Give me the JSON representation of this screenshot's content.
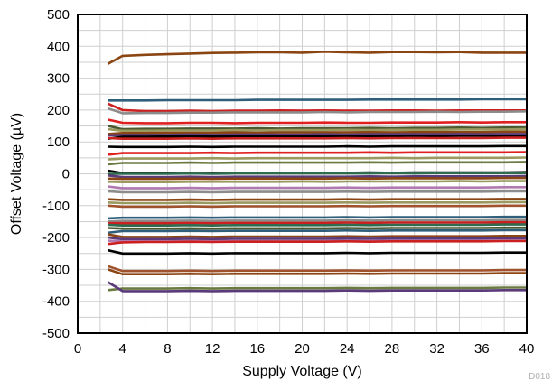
{
  "chart_data": {
    "type": "line",
    "title": "",
    "xlabel": "Supply Voltage (V)",
    "ylabel": "Offset Voltage (µV)",
    "xlim": [
      0,
      40
    ],
    "ylim": [
      -500,
      500
    ],
    "xticks": [
      0,
      4,
      8,
      12,
      16,
      20,
      24,
      28,
      32,
      36,
      40
    ],
    "yticks": [
      500,
      400,
      300,
      200,
      100,
      0,
      -100,
      -200,
      -300,
      -400,
      -500
    ],
    "grid": true,
    "legend": "none",
    "x": [
      2.7,
      4,
      6,
      8,
      10,
      12,
      14,
      16,
      18,
      20,
      22,
      24,
      26,
      28,
      30,
      32,
      34,
      36,
      38,
      40
    ],
    "footnote": "D018",
    "series": [
      {
        "color": "#8b4513",
        "values": [
          345,
          370,
          373,
          375,
          377,
          379,
          380,
          381,
          381,
          380,
          383,
          381,
          380,
          382,
          382,
          381,
          382,
          380,
          380,
          380
        ]
      },
      {
        "color": "#2f5f7a",
        "values": [
          230,
          230,
          230,
          231,
          231,
          231,
          231,
          232,
          232,
          232,
          232,
          232,
          233,
          233,
          233,
          233,
          233,
          234,
          234,
          234
        ]
      },
      {
        "color": "#cc2020",
        "values": [
          220,
          200,
          197,
          197,
          198,
          197,
          198,
          198,
          199,
          198,
          199,
          198,
          198,
          199,
          199,
          198,
          199,
          199,
          199,
          199
        ]
      },
      {
        "color": "#8c8c8c",
        "values": [
          205,
          190,
          191,
          191,
          192,
          192,
          193,
          193,
          193,
          193,
          194,
          193,
          194,
          194,
          194,
          195,
          194,
          195,
          195,
          196
        ]
      },
      {
        "color": "#e02020",
        "values": [
          170,
          160,
          159,
          159,
          160,
          160,
          159,
          160,
          160,
          160,
          161,
          160,
          160,
          161,
          161,
          161,
          162,
          161,
          162,
          162
        ]
      },
      {
        "color": "#4a5a30",
        "values": [
          150,
          140,
          141,
          141,
          142,
          142,
          142,
          143,
          142,
          143,
          143,
          143,
          144,
          143,
          144,
          144,
          145,
          144,
          145,
          145
        ]
      },
      {
        "color": "#9a9a60",
        "values": [
          140,
          135,
          135,
          136,
          136,
          136,
          137,
          136,
          137,
          137,
          137,
          138,
          137,
          138,
          138,
          138,
          139,
          139,
          139,
          140
        ]
      },
      {
        "color": "#8b4513",
        "values": [
          125,
          128,
          128,
          129,
          129,
          129,
          130,
          129,
          130,
          130,
          130,
          130,
          131,
          130,
          131,
          131,
          131,
          131,
          132,
          132
        ]
      },
      {
        "color": "#5a3a7a",
        "values": [
          120,
          122,
          122,
          122,
          123,
          122,
          123,
          123,
          123,
          123,
          124,
          123,
          124,
          124,
          124,
          124,
          125,
          124,
          125,
          125
        ]
      },
      {
        "color": "#000000",
        "values": [
          110,
          116,
          116,
          117,
          117,
          117,
          117,
          118,
          117,
          118,
          118,
          118,
          118,
          118,
          119,
          118,
          119,
          119,
          119,
          119
        ]
      },
      {
        "color": "#cc2020",
        "values": [
          112,
          110,
          110,
          110,
          111,
          110,
          111,
          111,
          111,
          111,
          111,
          112,
          111,
          112,
          112,
          112,
          112,
          112,
          113,
          113
        ]
      },
      {
        "color": "#000000",
        "values": [
          85,
          84,
          84,
          84,
          85,
          84,
          85,
          85,
          85,
          85,
          85,
          86,
          85,
          86,
          86,
          86,
          86,
          86,
          87,
          87
        ]
      },
      {
        "color": "#e02020",
        "values": [
          60,
          65,
          65,
          65,
          65,
          66,
          65,
          66,
          66,
          66,
          66,
          66,
          67,
          66,
          67,
          67,
          67,
          67,
          67,
          68
        ]
      },
      {
        "color": "#9a9a60",
        "values": [
          45,
          48,
          48,
          48,
          48,
          49,
          48,
          49,
          49,
          49,
          49,
          49,
          49,
          50,
          49,
          50,
          50,
          50,
          50,
          51
        ]
      },
      {
        "color": "#6a7a40",
        "values": [
          30,
          34,
          34,
          34,
          35,
          34,
          35,
          35,
          35,
          35,
          35,
          35,
          36,
          35,
          36,
          36,
          36,
          36,
          36,
          37
        ]
      },
      {
        "color": "#000000",
        "values": [
          10,
          2,
          2,
          2,
          3,
          2,
          3,
          3,
          3,
          3,
          3,
          3,
          4,
          3,
          4,
          4,
          4,
          4,
          4,
          5
        ]
      },
      {
        "color": "#2e6b4f",
        "values": [
          0,
          0,
          0,
          0,
          1,
          0,
          1,
          1,
          1,
          1,
          1,
          1,
          1,
          2,
          1,
          2,
          2,
          2,
          2,
          2
        ]
      },
      {
        "color": "#5a3a7a",
        "values": [
          -5,
          -10,
          -10,
          -10,
          -9,
          -10,
          -9,
          -9,
          -9,
          -9,
          -9,
          -9,
          -8,
          -9,
          -8,
          -8,
          -8,
          -8,
          -8,
          -7
        ]
      },
      {
        "color": "#8b4513",
        "values": [
          -15,
          -16,
          -16,
          -16,
          -15,
          -16,
          -15,
          -15,
          -15,
          -15,
          -15,
          -14,
          -15,
          -14,
          -14,
          -14,
          -14,
          -14,
          -13,
          -13
        ]
      },
      {
        "color": "#9a9a60",
        "values": [
          -25,
          -26,
          -26,
          -26,
          -25,
          -25,
          -25,
          -25,
          -25,
          -24,
          -25,
          -24,
          -24,
          -24,
          -24,
          -24,
          -23,
          -24,
          -23,
          -23
        ]
      },
      {
        "color": "#b07ab0",
        "values": [
          -40,
          -45,
          -45,
          -45,
          -44,
          -45,
          -44,
          -44,
          -44,
          -44,
          -44,
          -43,
          -44,
          -43,
          -43,
          -43,
          -43,
          -43,
          -42,
          -42
        ]
      },
      {
        "color": "#8c8c8c",
        "values": [
          -55,
          -58,
          -58,
          -58,
          -57,
          -58,
          -57,
          -57,
          -57,
          -57,
          -57,
          -56,
          -57,
          -56,
          -56,
          -56,
          -56,
          -56,
          -55,
          -55
        ]
      },
      {
        "color": "#8b4513",
        "values": [
          -80,
          -82,
          -82,
          -82,
          -81,
          -82,
          -81,
          -81,
          -81,
          -81,
          -81,
          -80,
          -81,
          -80,
          -80,
          -80,
          -80,
          -80,
          -79,
          -79
        ]
      },
      {
        "color": "#9a9a60",
        "values": [
          -90,
          -92,
          -92,
          -92,
          -91,
          -92,
          -91,
          -91,
          -91,
          -91,
          -91,
          -90,
          -91,
          -90,
          -90,
          -90,
          -90,
          -90,
          -89,
          -89
        ]
      },
      {
        "color": "#a0522d",
        "values": [
          -100,
          -103,
          -103,
          -103,
          -102,
          -103,
          -102,
          -102,
          -102,
          -102,
          -102,
          -101,
          -102,
          -101,
          -101,
          -101,
          -101,
          -101,
          -100,
          -100
        ]
      },
      {
        "color": "#2f5f7a",
        "values": [
          -140,
          -138,
          -138,
          -138,
          -137,
          -138,
          -137,
          -137,
          -137,
          -137,
          -137,
          -136,
          -137,
          -136,
          -136,
          -136,
          -136,
          -136,
          -135,
          -135
        ]
      },
      {
        "color": "#8c8c8c",
        "values": [
          -150,
          -148,
          -148,
          -148,
          -147,
          -148,
          -147,
          -147,
          -147,
          -147,
          -147,
          -146,
          -147,
          -146,
          -146,
          -146,
          -146,
          -146,
          -145,
          -145
        ]
      },
      {
        "color": "#cc2020",
        "values": [
          -155,
          -155,
          -155,
          -155,
          -154,
          -155,
          -154,
          -154,
          -154,
          -154,
          -154,
          -153,
          -154,
          -153,
          -153,
          -153,
          -153,
          -153,
          -152,
          -152
        ]
      },
      {
        "color": "#2e6b4f",
        "values": [
          -160,
          -162,
          -162,
          -162,
          -161,
          -162,
          -161,
          -161,
          -161,
          -161,
          -161,
          -160,
          -161,
          -160,
          -160,
          -160,
          -160,
          -160,
          -159,
          -159
        ]
      },
      {
        "color": "#4a5a30",
        "values": [
          -170,
          -172,
          -172,
          -172,
          -171,
          -172,
          -171,
          -171,
          -171,
          -171,
          -171,
          -170,
          -171,
          -170,
          -170,
          -170,
          -170,
          -170,
          -169,
          -169
        ]
      },
      {
        "color": "#2f5f7a",
        "values": [
          -185,
          -180,
          -180,
          -180,
          -179,
          -180,
          -179,
          -179,
          -179,
          -179,
          -179,
          -178,
          -179,
          -178,
          -178,
          -178,
          -178,
          -178,
          -177,
          -177
        ]
      },
      {
        "color": "#8b4513",
        "values": [
          -190,
          -198,
          -198,
          -198,
          -197,
          -198,
          -197,
          -197,
          -197,
          -197,
          -197,
          -196,
          -197,
          -196,
          -196,
          -196,
          -196,
          -196,
          -195,
          -195
        ]
      },
      {
        "color": "#5a3a7a",
        "values": [
          -200,
          -205,
          -205,
          -205,
          -204,
          -205,
          -204,
          -204,
          -204,
          -204,
          -204,
          -203,
          -204,
          -203,
          -203,
          -203,
          -203,
          -203,
          -202,
          -202
        ]
      },
      {
        "color": "#b07ab0",
        "values": [
          -210,
          -212,
          -212,
          -212,
          -211,
          -212,
          -211,
          -211,
          -211,
          -211,
          -211,
          -210,
          -211,
          -210,
          -210,
          -210,
          -210,
          -210,
          -209,
          -209
        ]
      },
      {
        "color": "#cc2020",
        "values": [
          -220,
          -215,
          -214,
          -214,
          -213,
          -214,
          -213,
          -213,
          -213,
          -213,
          -213,
          -212,
          -213,
          -212,
          -212,
          -212,
          -212,
          -212,
          -211,
          -211
        ]
      },
      {
        "color": "#000000",
        "values": [
          -240,
          -250,
          -250,
          -250,
          -249,
          -250,
          -249,
          -249,
          -249,
          -249,
          -249,
          -248,
          -249,
          -248,
          -248,
          -248,
          -248,
          -248,
          -247,
          -247
        ]
      },
      {
        "color": "#a0522d",
        "values": [
          -290,
          -305,
          -305,
          -305,
          -304,
          -305,
          -304,
          -304,
          -304,
          -304,
          -304,
          -303,
          -304,
          -303,
          -303,
          -303,
          -303,
          -303,
          -302,
          -302
        ]
      },
      {
        "color": "#8b4513",
        "values": [
          -300,
          -315,
          -315,
          -315,
          -314,
          -315,
          -314,
          -314,
          -314,
          -314,
          -314,
          -313,
          -314,
          -313,
          -313,
          -313,
          -313,
          -313,
          -312,
          -312
        ]
      },
      {
        "color": "#6a7a40",
        "values": [
          -365,
          -360,
          -360,
          -360,
          -359,
          -360,
          -359,
          -359,
          -359,
          -359,
          -359,
          -358,
          -359,
          -358,
          -358,
          -358,
          -358,
          -358,
          -357,
          -357
        ]
      },
      {
        "color": "#5a3a7a",
        "values": [
          -340,
          -368,
          -368,
          -368,
          -367,
          -368,
          -367,
          -367,
          -367,
          -367,
          -367,
          -366,
          -367,
          -366,
          -366,
          -366,
          -366,
          -366,
          -365,
          -365
        ]
      }
    ]
  }
}
